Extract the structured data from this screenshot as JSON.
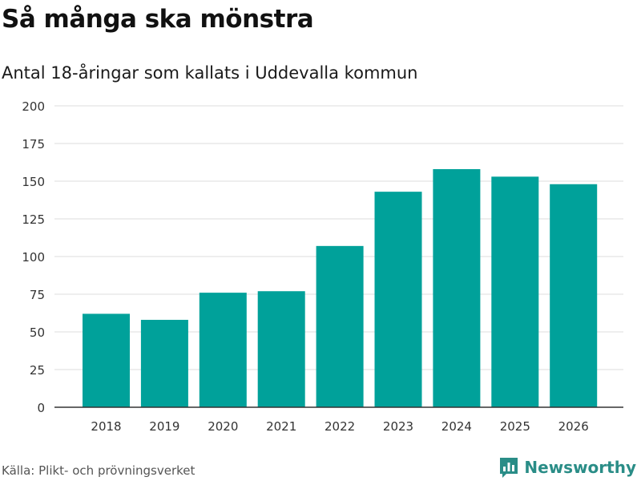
{
  "header": {
    "title": "Så många ska mönstra",
    "subtitle": "Antal 18-åringar som kallats i Uddevalla kommun"
  },
  "chart_data": {
    "type": "bar",
    "categories": [
      "2018",
      "2019",
      "2020",
      "2021",
      "2022",
      "2023",
      "2024",
      "2025",
      "2026"
    ],
    "values": [
      62,
      58,
      76,
      77,
      107,
      143,
      158,
      153,
      148
    ],
    "title": "Så många ska mönstra",
    "subtitle": "Antal 18-åringar som kallats i Uddevalla kommun",
    "xlabel": "",
    "ylabel": "",
    "ylim": [
      0,
      200
    ],
    "yticks": [
      0,
      25,
      50,
      75,
      100,
      125,
      150,
      175,
      200
    ],
    "grid": true,
    "legend": "none",
    "bar_color": "#00a19a"
  },
  "footer": {
    "source": "Källa: Plikt- och prövningsverket",
    "brand": "Newsworthy",
    "brand_icon": "bar-chart-icon",
    "brand_color": "#2a8d87"
  }
}
